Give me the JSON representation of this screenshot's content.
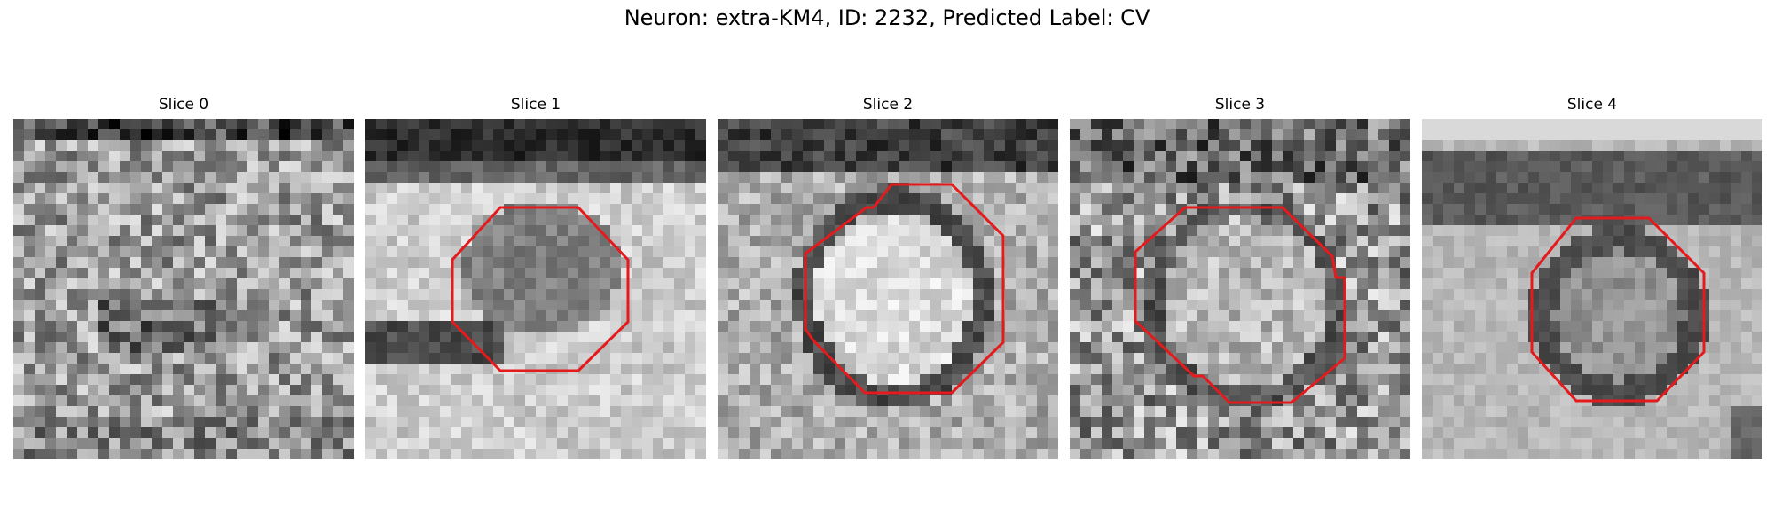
{
  "figure": {
    "title": "Neuron: extra-KM4, ID: 2232, Predicted Label: CV"
  },
  "panels": [
    {
      "title": "Slice 0",
      "has_outline": false
    },
    {
      "title": "Slice 1",
      "has_outline": true
    },
    {
      "title": "Slice 2",
      "has_outline": true
    },
    {
      "title": "Slice 3",
      "has_outline": true
    },
    {
      "title": "Slice 4",
      "has_outline": true
    }
  ],
  "colors": {
    "outline": "#e41a1c"
  }
}
